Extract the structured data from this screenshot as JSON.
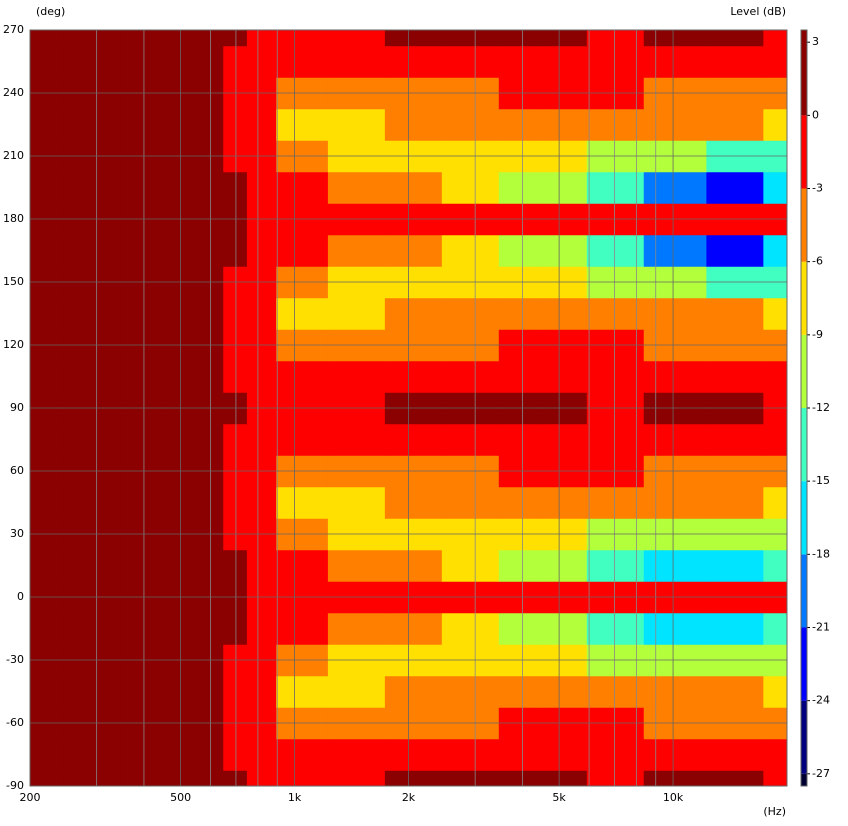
{
  "chart_data": {
    "type": "contour",
    "x_label": "(Hz)",
    "y_label": "(deg)",
    "colorbar_label": "Level (dB)",
    "x": [
      200,
      300,
      400,
      500,
      600,
      700,
      800,
      1000,
      1500,
      2000,
      3000,
      4000,
      5000,
      7000,
      10000,
      15000,
      20000
    ],
    "y": [
      -90,
      -75,
      -60,
      -45,
      -30,
      -15,
      0,
      15,
      30,
      45,
      60,
      75,
      90,
      105,
      120,
      135,
      150,
      165,
      180,
      195,
      210,
      225,
      240,
      255,
      270
    ],
    "z": [
      [
        1,
        1,
        1,
        1,
        1,
        0.5,
        -0.5,
        -1,
        -0.5,
        0.5,
        0.5,
        1,
        0.5,
        -0.5,
        0.5,
        0.5,
        -1
      ],
      [
        1,
        1,
        1,
        1,
        0.5,
        -0.3,
        -1.5,
        -2,
        -2,
        -1.5,
        -1,
        -1,
        -1,
        -1,
        -1,
        -1.5,
        -2
      ],
      [
        1,
        1,
        1,
        1,
        0.5,
        -0.5,
        -3,
        -5,
        -4,
        -3.5,
        -3.5,
        -3,
        -3,
        -3,
        -3.5,
        -4,
        -4
      ],
      [
        1,
        1,
        1,
        1,
        0.5,
        -0.5,
        -3,
        -7,
        -7,
        -5,
        -5,
        -4,
        -4,
        -5,
        -6,
        -6,
        -7
      ],
      [
        1,
        1,
        1,
        1,
        0.5,
        -0.5,
        -2,
        -5,
        -7,
        -8,
        -9,
        -9,
        -9,
        -10,
        -11,
        -12,
        -12
      ],
      [
        1,
        1,
        1,
        1,
        0.5,
        0,
        -1,
        -2,
        -4,
        -6,
        -9,
        -11,
        -12,
        -13,
        -16,
        -17,
        -15
      ],
      [
        1,
        1,
        1,
        1,
        0.5,
        0,
        -1,
        -1.5,
        -1.5,
        -1,
        -1,
        -1,
        -1.5,
        -1.5,
        -1,
        -1,
        -1
      ],
      [
        1,
        1,
        1,
        1,
        0.5,
        0,
        -1,
        -2,
        -4,
        -6,
        -9,
        -11,
        -12,
        -13,
        -16,
        -17,
        -15
      ],
      [
        1,
        1,
        1,
        1,
        0.5,
        -0.5,
        -2,
        -5,
        -7,
        -8,
        -9,
        -9,
        -9,
        -10,
        -11,
        -12,
        -12
      ],
      [
        1,
        1,
        1,
        1,
        0.5,
        -0.5,
        -3,
        -7,
        -7,
        -5,
        -5,
        -4,
        -4,
        -5,
        -6,
        -6,
        -7
      ],
      [
        1,
        1,
        1,
        1,
        0.5,
        -0.5,
        -3,
        -5,
        -4,
        -3.5,
        -3.5,
        -3,
        -3,
        -3,
        -3.5,
        -4,
        -4
      ],
      [
        1,
        1,
        1,
        1,
        0.5,
        -0.3,
        -1.5,
        -2,
        -2,
        -1.5,
        -1,
        -1,
        -1,
        -1,
        -1,
        -1.5,
        -2
      ],
      [
        1,
        1,
        1,
        1,
        1,
        0.5,
        -0.5,
        -1,
        -0.5,
        0.5,
        0.5,
        1,
        0.5,
        -0.5,
        0.5,
        0.5,
        -1
      ],
      [
        1,
        1,
        1,
        1,
        0.5,
        -0.3,
        -1.5,
        -2,
        -2,
        -1.5,
        -1,
        -1,
        -1,
        -1,
        -1,
        -1.5,
        -2
      ],
      [
        1,
        1,
        1,
        1,
        0.5,
        -0.5,
        -3,
        -5,
        -4,
        -3.5,
        -3.5,
        -3,
        -3,
        -3,
        -3.5,
        -4,
        -4
      ],
      [
        1,
        1,
        1,
        1,
        0.5,
        -0.5,
        -3,
        -7,
        -7,
        -5,
        -5,
        -4,
        -4,
        -5,
        -6,
        -6,
        -7
      ],
      [
        1,
        1,
        1,
        1,
        0.5,
        -0.5,
        -2,
        -5,
        -7,
        -8,
        -9,
        -9,
        -9,
        -10,
        -12,
        -14,
        -13
      ],
      [
        1,
        1,
        1,
        1,
        0.5,
        0,
        -1,
        -2,
        -4,
        -6,
        -9,
        -11,
        -12,
        -14,
        -20,
        -22,
        -18
      ],
      [
        1,
        1,
        1,
        1,
        0.5,
        0,
        -1,
        -1.5,
        -1.5,
        -1,
        -1,
        -1,
        -1.5,
        -1.5,
        -1,
        -1,
        -1
      ],
      [
        1,
        1,
        1,
        1,
        0.5,
        0,
        -1,
        -2,
        -4,
        -6,
        -9,
        -11,
        -12,
        -14,
        -20,
        -22,
        -18
      ],
      [
        1,
        1,
        1,
        1,
        0.5,
        -0.5,
        -2,
        -5,
        -7,
        -8,
        -9,
        -9,
        -9,
        -10,
        -12,
        -14,
        -13
      ],
      [
        1,
        1,
        1,
        1,
        0.5,
        -0.5,
        -3,
        -7,
        -7,
        -5,
        -5,
        -4,
        -4,
        -5,
        -6,
        -6,
        -7
      ],
      [
        1,
        1,
        1,
        1,
        0.5,
        -0.5,
        -3,
        -5,
        -4,
        -3.5,
        -3.5,
        -3,
        -3,
        -3,
        -3.5,
        -4,
        -4
      ],
      [
        1,
        1,
        1,
        1,
        0.5,
        -0.3,
        -1.5,
        -2,
        -2,
        -1.5,
        -1,
        -1,
        -1,
        -1,
        -1,
        -1.5,
        -2
      ],
      [
        1,
        1,
        1,
        1,
        1,
        0.5,
        -0.5,
        -1,
        -0.5,
        0.5,
        0.5,
        1,
        0.5,
        -0.5,
        0.5,
        0.5,
        -1
      ]
    ],
    "xlim": [
      200,
      20000
    ],
    "xscale": "log",
    "xticks": [
      200,
      500,
      {
        "value": 1000,
        "label": "1k"
      },
      {
        "value": 2000,
        "label": "2k"
      },
      {
        "value": 5000,
        "label": "5k"
      },
      {
        "value": 10000,
        "label": "10k"
      }
    ],
    "xminorticks": [
      300,
      400,
      600,
      700,
      800,
      900,
      3000,
      4000,
      6000,
      7000,
      8000,
      9000
    ],
    "ylim": [
      -90,
      270
    ],
    "yticks": [
      -90,
      -60,
      -30,
      0,
      30,
      60,
      90,
      120,
      150,
      180,
      210,
      240,
      270
    ],
    "levels": [
      -27,
      -24,
      -21,
      -18,
      -15,
      -12,
      -9,
      -6,
      -3,
      0
    ],
    "colors": [
      "#000033",
      "#00007f",
      "#0000ff",
      "#0078ff",
      "#00e4ff",
      "#40ffc0",
      "#b4ff3c",
      "#ffe000",
      "#ff7f00",
      "#ff0000",
      "#8b0000"
    ],
    "zlim": [
      -27.5,
      3.5
    ],
    "cticks": [
      3,
      0,
      -3,
      -6,
      -9,
      -12,
      -15,
      -18,
      -21,
      -24,
      -27
    ],
    "grid": true
  }
}
